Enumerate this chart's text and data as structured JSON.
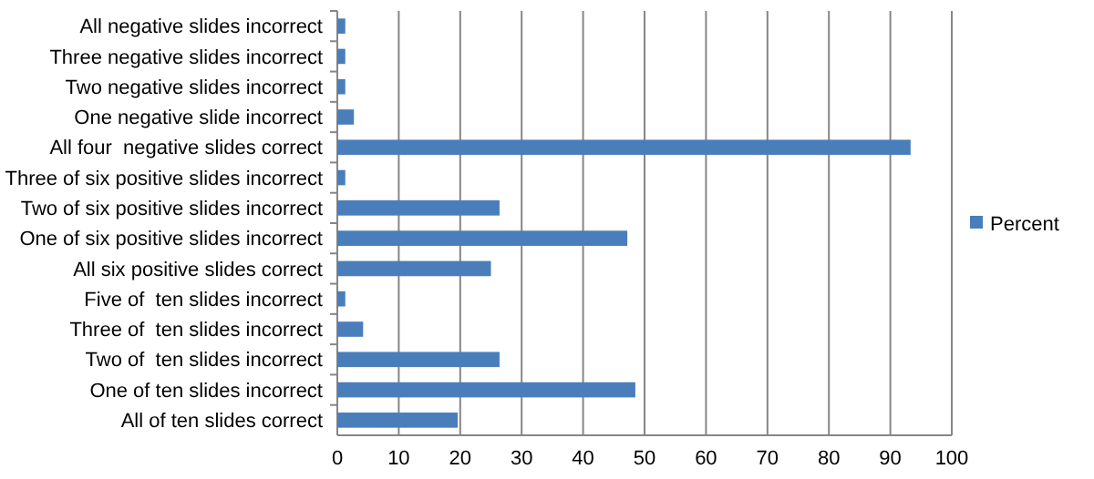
{
  "chart_data": {
    "type": "bar",
    "orientation": "horizontal",
    "categories": [
      "All negative slides incorrect",
      "Three negative slides incorrect",
      "Two negative slides incorrect",
      "One negative slide incorrect",
      "All four  negative slides correct",
      "Three of six positive slides incorrect",
      "Two of six positive slides incorrect",
      "One of six positive slides incorrect",
      "All six positive slides correct",
      "Five of  ten slides incorrect",
      "Three of  ten slides incorrect",
      "Two of  ten slides incorrect",
      "One of ten slides incorrect",
      "All of ten slides correct"
    ],
    "series": [
      {
        "name": "Percent",
        "color": "#4a7ebb",
        "values": [
          1.3,
          1.3,
          1.3,
          2.7,
          93.3,
          1.3,
          26.4,
          47.2,
          25.0,
          1.3,
          4.2,
          26.4,
          48.5,
          19.6
        ]
      }
    ],
    "xlim": [
      0,
      100
    ],
    "xticks": [
      0,
      10,
      20,
      30,
      40,
      50,
      60,
      70,
      80,
      90,
      100
    ],
    "grid": "x",
    "legend": "right"
  }
}
